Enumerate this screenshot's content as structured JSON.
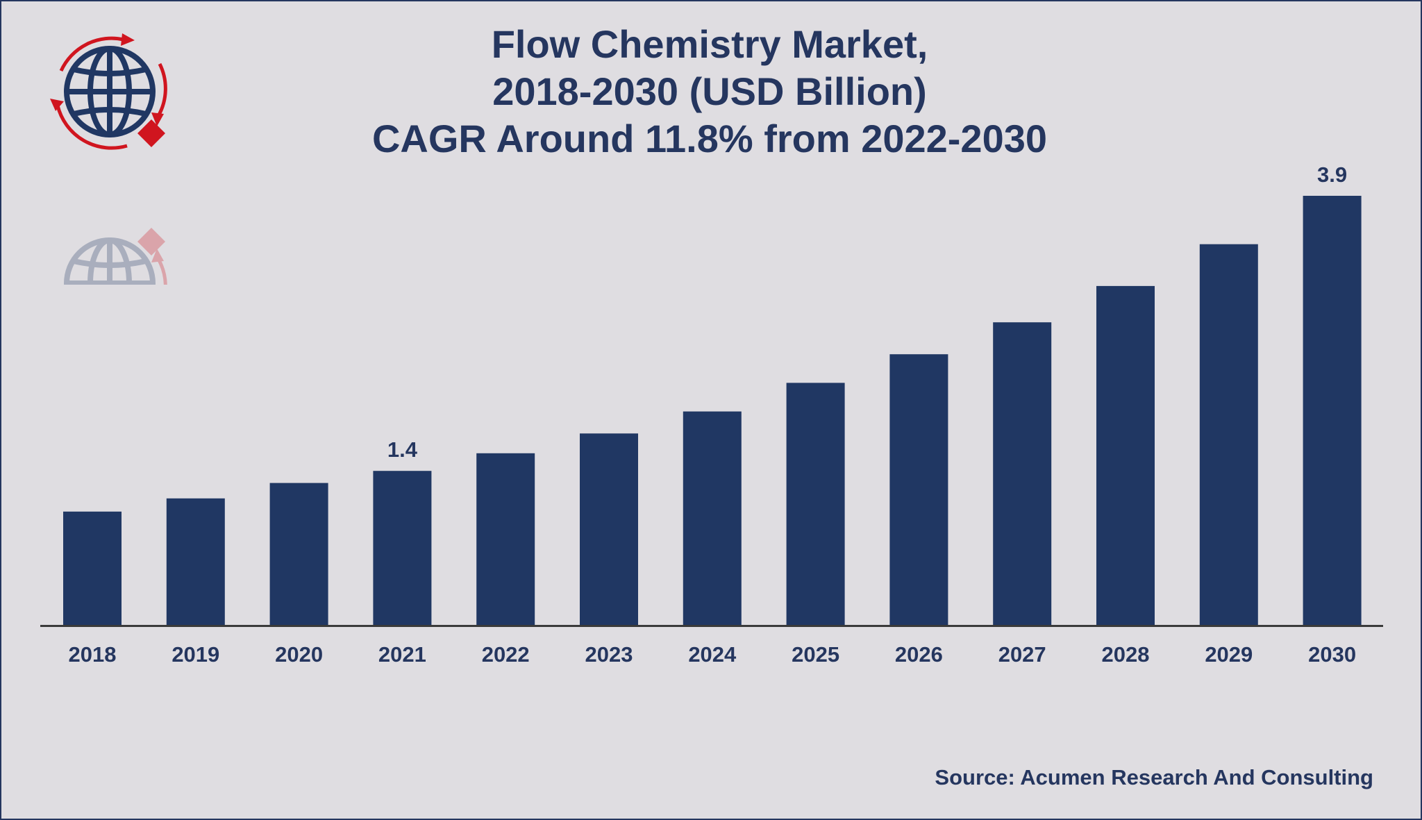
{
  "header": {
    "title_line1": "Flow Chemistry Market,",
    "title_line2": "2018-2030 (USD Billion)",
    "title_line3": "CAGR Around 11.8% from 2022-2030"
  },
  "footer": {
    "source": "Source: Acumen Research And Consulting"
  },
  "logo": {
    "icon": "globe-logo-icon"
  },
  "colors": {
    "bar": "#203763",
    "text": "#25365f",
    "axis": "#3a3a3a",
    "background": "#dfdde1",
    "logo_red": "#d0151f"
  },
  "chart_data": {
    "type": "bar",
    "title": "Flow Chemistry Market, 2018-2030 (USD Billion) CAGR Around 11.8% from 2022-2030",
    "categories": [
      "2018",
      "2019",
      "2020",
      "2021",
      "2022",
      "2023",
      "2024",
      "2025",
      "2026",
      "2027",
      "2028",
      "2029",
      "2030"
    ],
    "values": [
      1.03,
      1.15,
      1.29,
      1.4,
      1.56,
      1.74,
      1.94,
      2.2,
      2.46,
      2.75,
      3.08,
      3.46,
      3.9
    ],
    "data_labels": [
      {
        "category": "2021",
        "text": "1.4"
      },
      {
        "category": "2030",
        "text": "3.9"
      }
    ],
    "ylim": [
      0,
      3.9
    ],
    "grid": false,
    "legend": "none",
    "xlabel": "",
    "ylabel": ""
  }
}
